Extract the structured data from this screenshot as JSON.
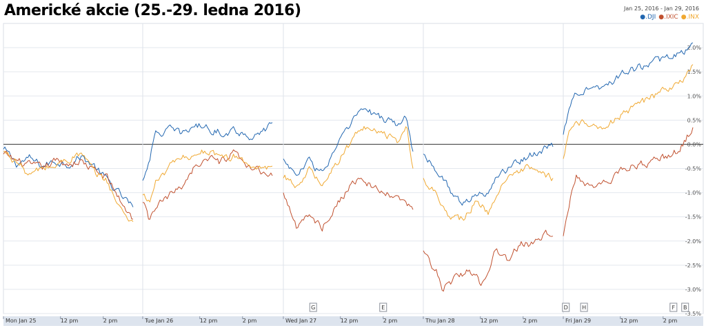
{
  "title": "Americké akcie (25.-29. ledna 2016)",
  "date_range": {
    "start": "Jan 25, 2016",
    "separator": " - ",
    "end": "Jan 29, 2016"
  },
  "chart_data": {
    "type": "line",
    "ylim": [
      -3.5,
      2.5
    ],
    "y_ticks": [
      {
        "value": 2.0,
        "label": "2.0%"
      },
      {
        "value": 1.5,
        "label": "1.5%"
      },
      {
        "value": 1.0,
        "label": "1.0%"
      },
      {
        "value": 0.5,
        "label": "0.5%"
      },
      {
        "value": 0.0,
        "label": "0.0%"
      },
      {
        "value": -0.5,
        "label": "-0.5%"
      },
      {
        "value": -1.0,
        "label": "-1.0%"
      },
      {
        "value": -1.5,
        "label": "-1.5%"
      },
      {
        "value": -2.0,
        "label": "-2.0%"
      },
      {
        "value": -2.5,
        "label": "-2.5%"
      },
      {
        "value": -3.0,
        "label": "-3.0%"
      },
      {
        "value": -3.5,
        "label": "-3.5%"
      }
    ],
    "x_ticks": [
      "Mon Jan 25",
      "12 pm",
      "2 pm",
      "Tue Jan 26",
      "12 pm",
      "2 pm",
      "Wed Jan 27",
      "12 pm",
      "2 pm",
      "Thu Jan 28",
      "12 pm",
      "2 pm",
      "Fri Jan 29",
      "12 pm",
      "2 pm"
    ],
    "day_boundaries": [
      "Jan 25",
      "Jan 26",
      "Jan 27",
      "Jan 28",
      "Jan 29"
    ],
    "series": [
      {
        "name": ".DJI",
        "color": "#2166b0",
        "days": [
          [
            [
              0,
              -0.1
            ],
            [
              0.1,
              -0.4
            ],
            [
              0.2,
              -0.3
            ],
            [
              0.3,
              -0.45
            ],
            [
              0.4,
              -0.35
            ],
            [
              0.5,
              -0.4
            ],
            [
              0.6,
              -0.25
            ],
            [
              0.7,
              -0.45
            ],
            [
              0.8,
              -0.75
            ],
            [
              0.9,
              -1.05
            ],
            [
              1.0,
              -1.3
            ]
          ],
          [
            [
              0,
              -0.75
            ],
            [
              0.05,
              -0.3
            ],
            [
              0.1,
              0.2
            ],
            [
              0.2,
              0.3
            ],
            [
              0.3,
              0.2
            ],
            [
              0.4,
              0.4
            ],
            [
              0.5,
              0.35
            ],
            [
              0.6,
              0.25
            ],
            [
              0.7,
              0.3
            ],
            [
              0.8,
              0.2
            ],
            [
              0.9,
              0.15
            ],
            [
              1.0,
              0.45
            ]
          ],
          [
            [
              0,
              -0.3
            ],
            [
              0.1,
              -0.65
            ],
            [
              0.2,
              -0.35
            ],
            [
              0.3,
              -0.6
            ],
            [
              0.4,
              -0.1
            ],
            [
              0.5,
              0.3
            ],
            [
              0.6,
              0.75
            ],
            [
              0.7,
              0.6
            ],
            [
              0.8,
              0.5
            ],
            [
              0.9,
              0.4
            ],
            [
              0.95,
              0.55
            ],
            [
              1.0,
              -0.15
            ]
          ],
          [
            [
              0,
              -0.2
            ],
            [
              0.1,
              -0.5
            ],
            [
              0.2,
              -0.9
            ],
            [
              0.3,
              -1.3
            ],
            [
              0.4,
              -1.05
            ],
            [
              0.5,
              -0.95
            ],
            [
              0.6,
              -0.6
            ],
            [
              0.7,
              -0.4
            ],
            [
              0.8,
              -0.25
            ],
            [
              0.9,
              -0.15
            ],
            [
              1.0,
              -0.05
            ]
          ],
          [
            [
              0,
              0.2
            ],
            [
              0.05,
              0.8
            ],
            [
              0.1,
              1.1
            ],
            [
              0.2,
              1.15
            ],
            [
              0.3,
              1.2
            ],
            [
              0.4,
              1.35
            ],
            [
              0.5,
              1.5
            ],
            [
              0.6,
              1.6
            ],
            [
              0.7,
              1.7
            ],
            [
              0.8,
              1.75
            ],
            [
              0.9,
              1.85
            ],
            [
              1.0,
              2.1
            ]
          ]
        ]
      },
      {
        "name": ".IXIC",
        "color": "#c0502e",
        "days": [
          [
            [
              0,
              -0.2
            ],
            [
              0.1,
              -0.35
            ],
            [
              0.2,
              -0.45
            ],
            [
              0.3,
              -0.5
            ],
            [
              0.4,
              -0.35
            ],
            [
              0.5,
              -0.4
            ],
            [
              0.6,
              -0.35
            ],
            [
              0.7,
              -0.55
            ],
            [
              0.8,
              -0.7
            ],
            [
              0.9,
              -1.15
            ],
            [
              1.0,
              -1.55
            ]
          ],
          [
            [
              0,
              -1.2
            ],
            [
              0.05,
              -1.6
            ],
            [
              0.1,
              -1.3
            ],
            [
              0.2,
              -1.1
            ],
            [
              0.3,
              -0.85
            ],
            [
              0.4,
              -0.45
            ],
            [
              0.5,
              -0.3
            ],
            [
              0.6,
              -0.4
            ],
            [
              0.7,
              -0.2
            ],
            [
              0.8,
              -0.5
            ],
            [
              0.9,
              -0.55
            ],
            [
              1.0,
              -0.65
            ]
          ],
          [
            [
              0,
              -1.0
            ],
            [
              0.1,
              -1.7
            ],
            [
              0.2,
              -1.5
            ],
            [
              0.3,
              -1.7
            ],
            [
              0.4,
              -1.3
            ],
            [
              0.5,
              -0.9
            ],
            [
              0.6,
              -0.65
            ],
            [
              0.7,
              -0.95
            ],
            [
              0.8,
              -1.05
            ],
            [
              0.9,
              -1.15
            ],
            [
              1.0,
              -1.35
            ]
          ],
          [
            [
              0,
              -2.2
            ],
            [
              0.1,
              -2.6
            ],
            [
              0.15,
              -3.0
            ],
            [
              0.25,
              -2.75
            ],
            [
              0.35,
              -2.6
            ],
            [
              0.45,
              -2.9
            ],
            [
              0.55,
              -2.2
            ],
            [
              0.65,
              -2.4
            ],
            [
              0.75,
              -2.05
            ],
            [
              0.85,
              -2.1
            ],
            [
              0.95,
              -1.85
            ],
            [
              1.0,
              -1.9
            ]
          ],
          [
            [
              0,
              -1.9
            ],
            [
              0.05,
              -1.15
            ],
            [
              0.1,
              -0.6
            ],
            [
              0.2,
              -0.85
            ],
            [
              0.3,
              -0.9
            ],
            [
              0.4,
              -0.65
            ],
            [
              0.5,
              -0.45
            ],
            [
              0.6,
              -0.4
            ],
            [
              0.7,
              -0.35
            ],
            [
              0.8,
              -0.25
            ],
            [
              0.9,
              -0.1
            ],
            [
              1.0,
              0.35
            ]
          ]
        ]
      },
      {
        "name": ".INX",
        "color": "#f0a830",
        "days": [
          [
            [
              0,
              -0.15
            ],
            [
              0.1,
              -0.35
            ],
            [
              0.2,
              -0.65
            ],
            [
              0.3,
              -0.5
            ],
            [
              0.4,
              -0.45
            ],
            [
              0.5,
              -0.3
            ],
            [
              0.6,
              -0.2
            ],
            [
              0.7,
              -0.6
            ],
            [
              0.8,
              -0.75
            ],
            [
              0.9,
              -1.35
            ],
            [
              1.0,
              -1.6
            ]
          ],
          [
            [
              0,
              -1.05
            ],
            [
              0.05,
              -1.2
            ],
            [
              0.1,
              -0.8
            ],
            [
              0.2,
              -0.5
            ],
            [
              0.3,
              -0.3
            ],
            [
              0.4,
              -0.2
            ],
            [
              0.5,
              -0.1
            ],
            [
              0.6,
              -0.35
            ],
            [
              0.7,
              -0.25
            ],
            [
              0.8,
              -0.4
            ],
            [
              0.9,
              -0.5
            ],
            [
              1.0,
              -0.45
            ]
          ],
          [
            [
              0,
              -0.7
            ],
            [
              0.1,
              -0.85
            ],
            [
              0.2,
              -0.5
            ],
            [
              0.3,
              -0.8
            ],
            [
              0.4,
              -0.4
            ],
            [
              0.5,
              -0.05
            ],
            [
              0.6,
              0.4
            ],
            [
              0.7,
              0.25
            ],
            [
              0.8,
              0.15
            ],
            [
              0.9,
              0.05
            ],
            [
              0.95,
              0.3
            ],
            [
              1.0,
              -0.5
            ]
          ],
          [
            [
              0,
              -0.7
            ],
            [
              0.1,
              -1.0
            ],
            [
              0.2,
              -1.45
            ],
            [
              0.3,
              -1.55
            ],
            [
              0.4,
              -1.2
            ],
            [
              0.5,
              -1.4
            ],
            [
              0.6,
              -0.8
            ],
            [
              0.7,
              -0.7
            ],
            [
              0.8,
              -0.5
            ],
            [
              0.9,
              -0.65
            ],
            [
              1.0,
              -0.7
            ]
          ],
          [
            [
              0,
              -0.3
            ],
            [
              0.05,
              0.25
            ],
            [
              0.1,
              0.55
            ],
            [
              0.2,
              0.4
            ],
            [
              0.3,
              0.3
            ],
            [
              0.4,
              0.5
            ],
            [
              0.5,
              0.7
            ],
            [
              0.6,
              0.85
            ],
            [
              0.7,
              1.0
            ],
            [
              0.8,
              1.1
            ],
            [
              0.9,
              1.25
            ],
            [
              1.0,
              1.65
            ]
          ]
        ]
      }
    ],
    "event_flags": [
      {
        "label": "G",
        "day": 2,
        "pos": 0.23
      },
      {
        "label": "E",
        "day": 2,
        "pos": 0.77
      },
      {
        "label": "D",
        "day": 4,
        "pos": 0.02
      },
      {
        "label": "H",
        "day": 4,
        "pos": 0.16
      },
      {
        "label": "F",
        "day": 4,
        "pos": 0.85
      },
      {
        "label": "B",
        "day": 4,
        "pos": 0.94
      }
    ]
  }
}
